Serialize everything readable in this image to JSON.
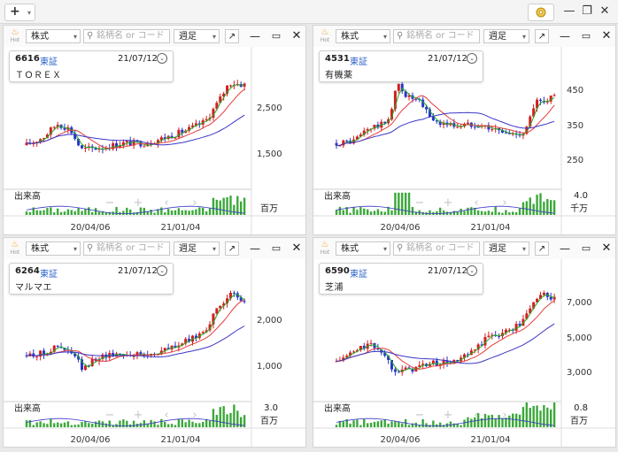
{
  "toolbar": {
    "add_symbol": "+",
    "dropdown_symbol": "▾",
    "gear_symbol": "⚙",
    "minimize_symbol": "—",
    "restore_symbol": "❐",
    "close_symbol": "✕"
  },
  "panel_common": {
    "hot_label": "Hot",
    "type_select": "株式",
    "search_placeholder": "銘柄名 or コード",
    "period_select": "週足",
    "expand_symbol": "↗",
    "minimize_symbol": "—",
    "maximize_symbol": "▭",
    "close_symbol": "✕",
    "volume_label": "出来高",
    "nav_minus": "−",
    "nav_plus": "+",
    "nav_prev": "‹",
    "nav_next": "›",
    "x_labels": [
      "20/04/06",
      "21/01/04"
    ]
  },
  "panels": [
    {
      "code": "6616",
      "exchange": "東証",
      "date": "21/07/12",
      "name": "ＴＯＲＥＸ",
      "price_ticks": [
        "2,500",
        "1,500"
      ],
      "volume_max": "",
      "volume_unit": "百万",
      "colors": {
        "up": "#d21f1f",
        "down": "#2636c8",
        "ma_short": "#27a827",
        "ma_mid": "#e33c3c",
        "ma_long": "#3a36c6"
      }
    },
    {
      "code": "4531",
      "exchange": "東証",
      "date": "21/07/12",
      "name": "有機薬",
      "price_ticks": [
        "450",
        "350",
        "250"
      ],
      "volume_max": "4.0",
      "volume_unit": "千万"
    },
    {
      "code": "6264",
      "exchange": "東証",
      "date": "21/07/12",
      "name": "マルマエ",
      "price_ticks": [
        "2,000",
        "1,000"
      ],
      "volume_max": "3.0",
      "volume_unit": "百万"
    },
    {
      "code": "6590",
      "exchange": "東証",
      "date": "21/07/12",
      "name": "芝浦",
      "price_ticks": [
        "7,000",
        "5,000",
        "3,000"
      ],
      "volume_max": "0.8",
      "volume_unit": "百万"
    }
  ]
}
